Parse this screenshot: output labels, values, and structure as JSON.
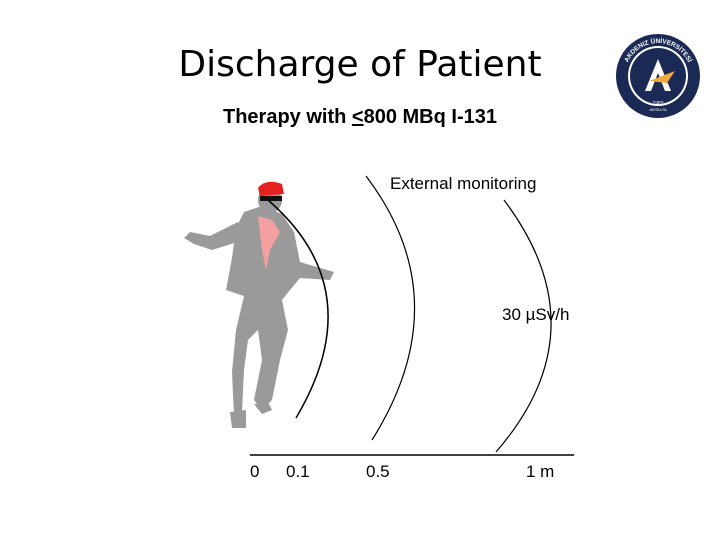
{
  "slide": {
    "title": "Discharge of Patient",
    "subtitle_prefix": "Therapy with ",
    "subtitle_le": "<",
    "subtitle_suffix": "800 MBq I-131"
  },
  "diagram": {
    "annotation_top": "External monitoring",
    "dose_rate": "30 µSv/h",
    "distance_ticks": [
      "0",
      "0.1",
      "0.5",
      "1 m"
    ]
  },
  "logo": {
    "text": "AKDENIZ ÜNİVERSİTESİ",
    "year": "1982",
    "city": "ANTALYA"
  },
  "colors": {
    "figure_gray": "#9a9a9a",
    "cap_red": "#e52020",
    "shirt_pink": "#f4a0a0",
    "logo_navy": "#1b2a55"
  }
}
